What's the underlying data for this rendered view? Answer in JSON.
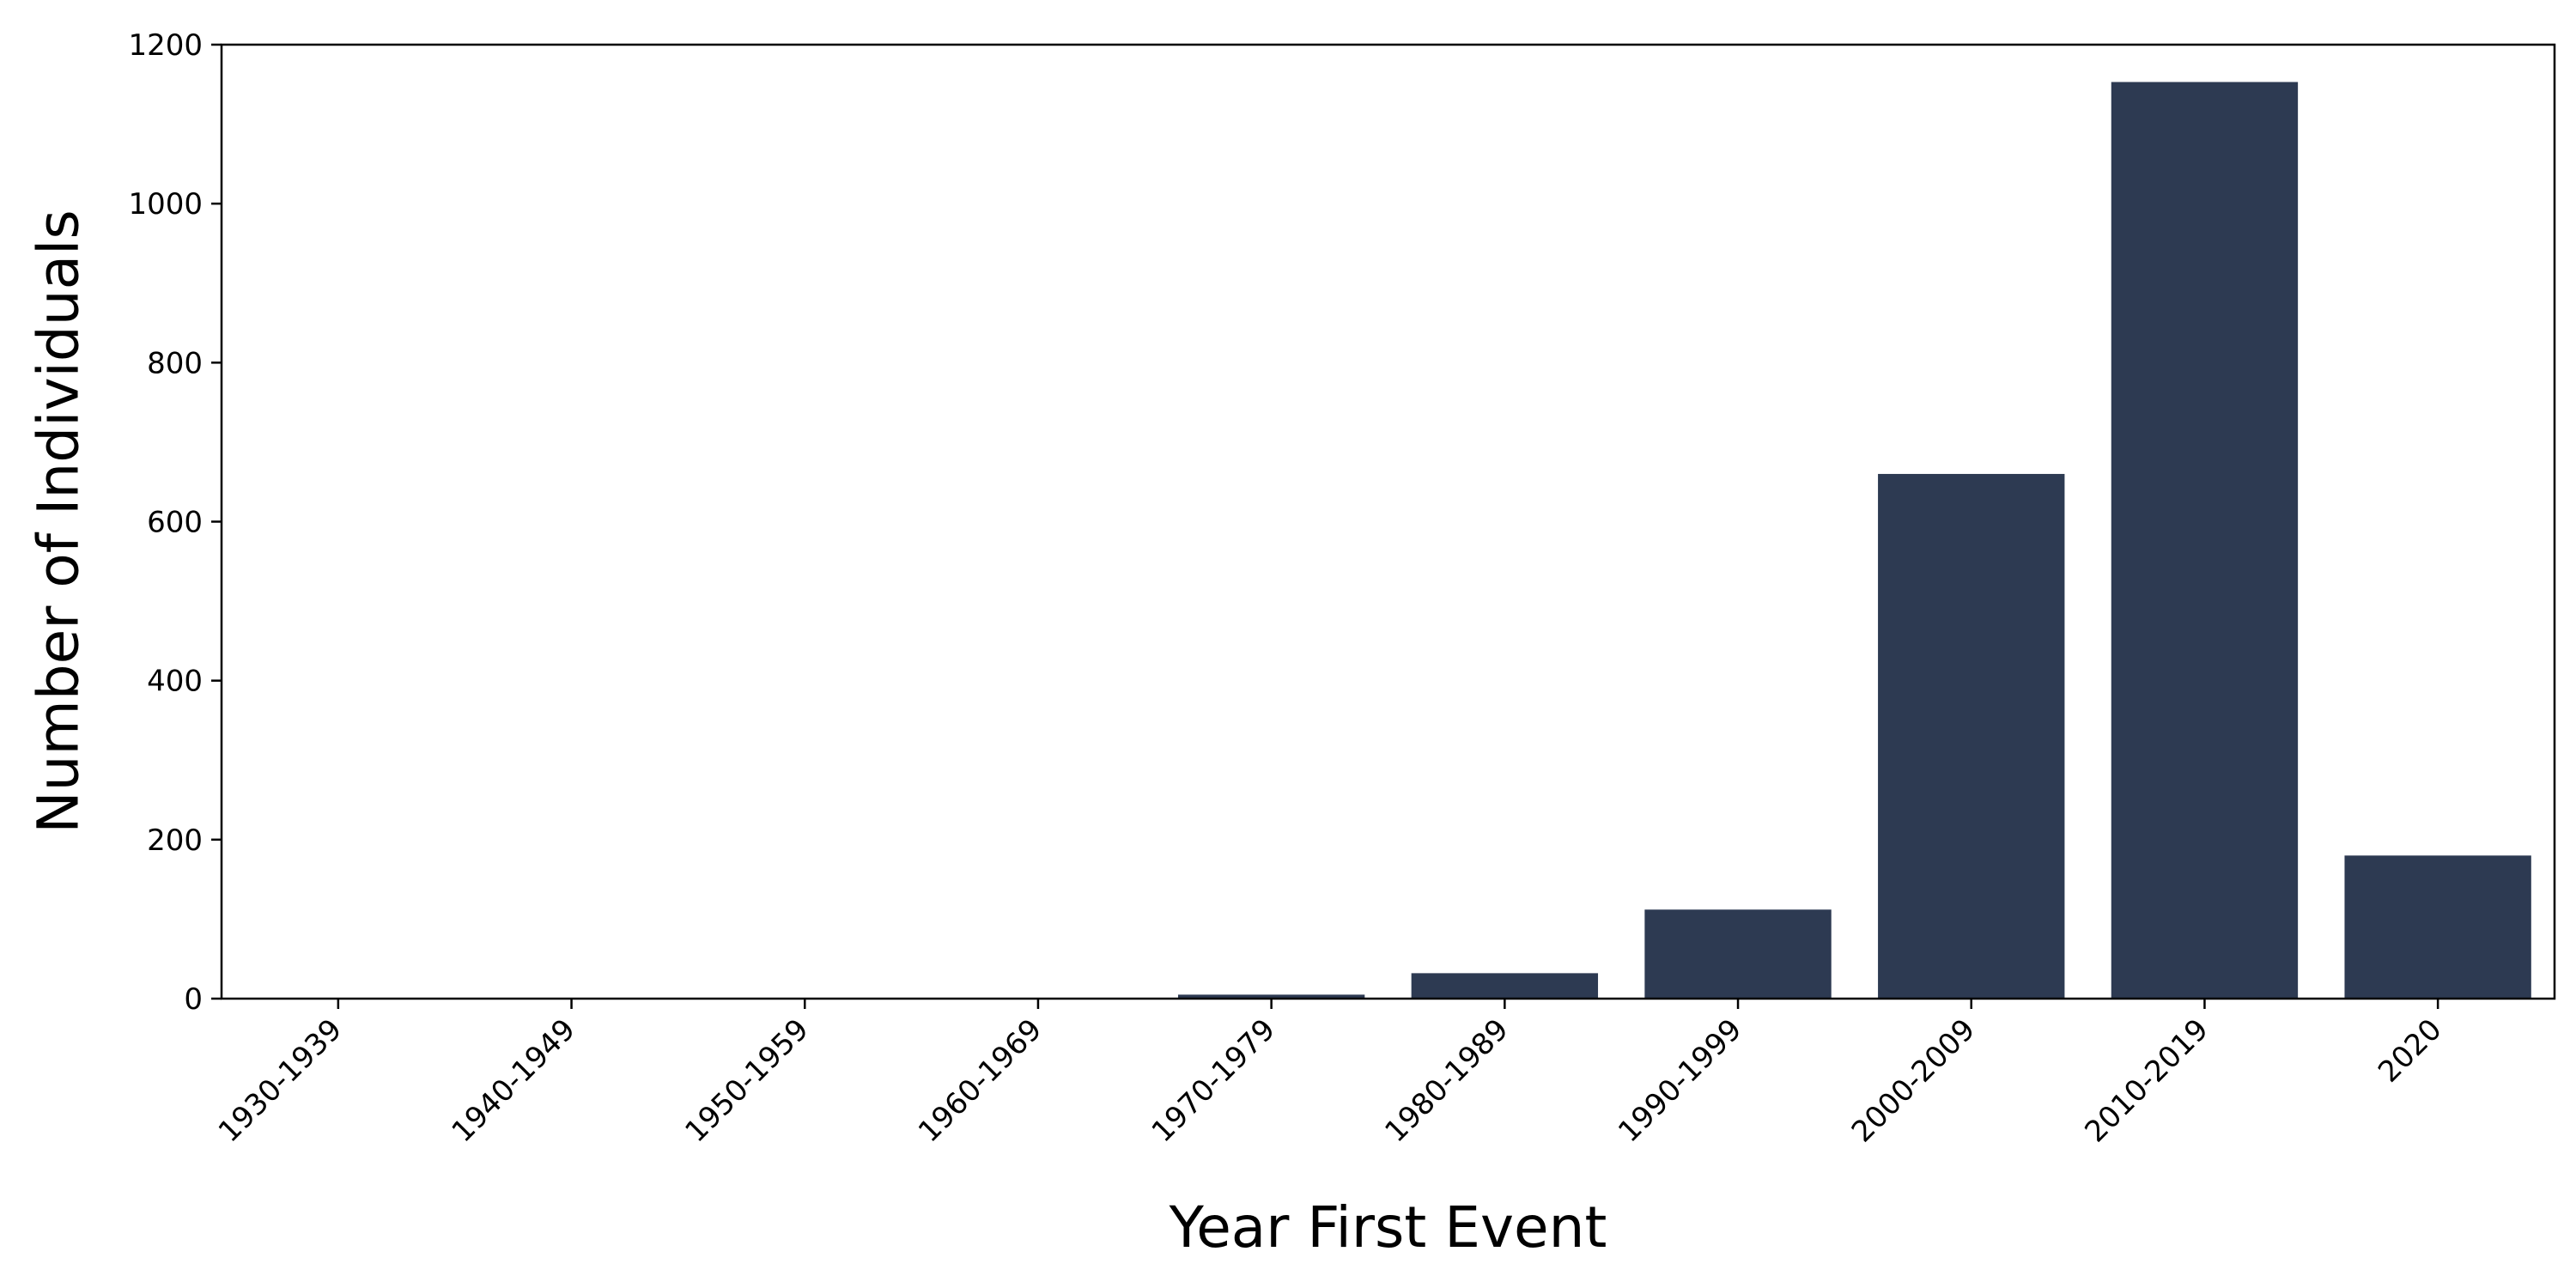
{
  "chart_data": {
    "type": "bar",
    "categories": [
      "1930-1939",
      "1940-1949",
      "1950-1959",
      "1960-1969",
      "1970-1979",
      "1980-1989",
      "1990-1999",
      "2000-2009",
      "2010-2019",
      "2020"
    ],
    "values": [
      0,
      0,
      0,
      0,
      5,
      32,
      112,
      660,
      1153,
      180
    ],
    "xlabel": "Year First Event",
    "ylabel": "Number of Individuals",
    "ylim": [
      0,
      1200
    ],
    "yticks": [
      0,
      200,
      400,
      600,
      800,
      1000,
      1200
    ],
    "bar_color": "#2d3a52",
    "grid": false,
    "x_tick_rotation_deg": 45
  }
}
